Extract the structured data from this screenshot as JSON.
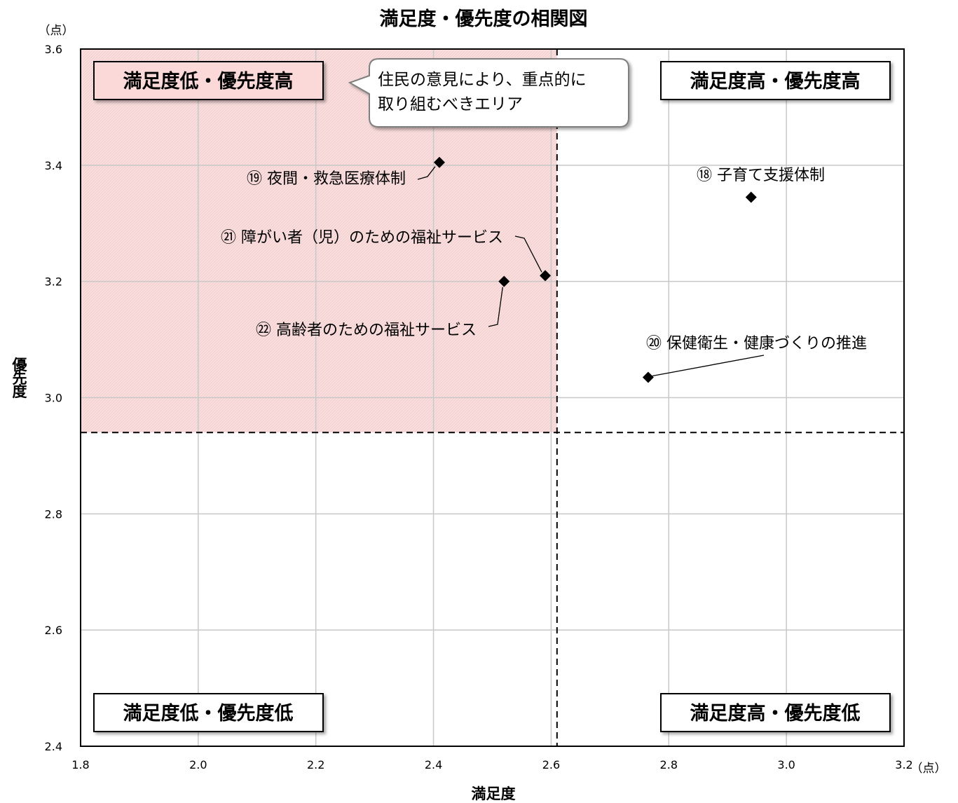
{
  "chart_data": {
    "type": "scatter",
    "title": "満足度・優先度の相関図",
    "xlabel": "満足度",
    "ylabel": "優先度",
    "x_unit": "（点）",
    "y_unit": "（点）",
    "xlim": [
      1.8,
      3.2
    ],
    "ylim": [
      2.4,
      3.6
    ],
    "x_ticks": [
      "1.8",
      "2.0",
      "2.2",
      "2.4",
      "2.6",
      "2.8",
      "3.0",
      "3.2"
    ],
    "y_ticks": [
      "2.4",
      "2.6",
      "2.8",
      "3.0",
      "3.2",
      "3.4",
      "3.6"
    ],
    "grid": true,
    "x_mean_line": 2.61,
    "y_mean_line": 2.94,
    "highlight_color": "#f7d9d9",
    "highlight_border": "#c00000",
    "quadrant_labels": {
      "top_left": "満足度低・優先度高",
      "top_right": "満足度高・優先度高",
      "bottom_left": "満足度低・優先度低",
      "bottom_right": "満足度高・優先度低"
    },
    "callout": {
      "line1": "住民の意見により、重点的に",
      "line2": "取り組むべきエリア"
    },
    "points": [
      {
        "label": "⑱ 子育て支援体制",
        "x": 2.94,
        "y": 3.345
      },
      {
        "label": "⑲ 夜間・救急医療体制",
        "x": 2.41,
        "y": 3.405
      },
      {
        "label": "⑳ 保健衛生・健康づくりの推進",
        "x": 2.765,
        "y": 3.035
      },
      {
        "label": "㉑ 障がい者（児）のための福祉サービス",
        "x": 2.59,
        "y": 3.21
      },
      {
        "label": "㉒ 高齢者のための福祉サービス",
        "x": 2.52,
        "y": 3.2
      }
    ]
  }
}
